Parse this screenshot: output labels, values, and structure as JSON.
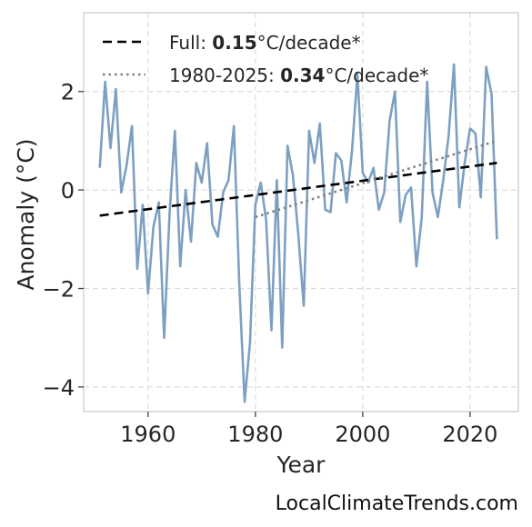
{
  "chart_data": {
    "type": "line",
    "title": "",
    "xlabel": "Year",
    "ylabel": "Anomaly (°C)",
    "xlim": [
      1948,
      2029
    ],
    "ylim": [
      -4.5,
      3.6
    ],
    "x_ticks": [
      1960,
      1980,
      2000,
      2020
    ],
    "y_ticks": [
      -4,
      -2,
      0,
      2
    ],
    "y_tick_labels": [
      "−4",
      "−2",
      "0",
      "2"
    ],
    "grid": true,
    "legend_position": "top-left",
    "colors": {
      "series": "#7da0c2",
      "trend_full": "#000000",
      "trend_recent": "#808080",
      "grid": "#dddddd",
      "frame": "#cccccc"
    },
    "series": [
      {
        "x": [
          1951,
          1952,
          1953,
          1954,
          1955,
          1956,
          1957,
          1958,
          1959,
          1960,
          1961,
          1962,
          1963,
          1964,
          1965,
          1966,
          1967,
          1968,
          1969,
          1970,
          1971,
          1972,
          1973,
          1974,
          1975,
          1976,
          1977,
          1978,
          1979,
          1980,
          1981,
          1982,
          1983,
          1984,
          1985,
          1986,
          1987,
          1988,
          1989,
          1990,
          1991,
          1992,
          1993,
          1994,
          1995,
          1996,
          1997,
          1998,
          1999,
          2000,
          2001,
          2002,
          2003,
          2004,
          2005,
          2006,
          2007,
          2008,
          2009,
          2010,
          2011,
          2012,
          2013,
          2014,
          2015,
          2016,
          2017,
          2018,
          2019,
          2020,
          2021,
          2022,
          2023,
          2024,
          2025
        ],
        "values": [
          0.45,
          2.2,
          0.85,
          2.05,
          -0.05,
          0.5,
          1.3,
          -1.6,
          -0.3,
          -2.1,
          -0.75,
          -0.25,
          -3.0,
          -0.5,
          1.2,
          -1.55,
          0.0,
          -1.05,
          0.55,
          0.15,
          0.95,
          -0.7,
          -0.95,
          -0.05,
          0.2,
          1.3,
          -1.9,
          -4.3,
          -3.1,
          -0.3,
          0.15,
          -0.6,
          -2.85,
          0.2,
          -3.2,
          0.9,
          0.3,
          -0.9,
          -2.35,
          1.2,
          0.55,
          1.35,
          -0.4,
          -0.45,
          0.75,
          0.6,
          -0.25,
          0.8,
          2.35,
          0.35,
          0.15,
          0.45,
          -0.4,
          -0.05,
          1.4,
          2.0,
          -0.65,
          -0.1,
          0.05,
          -1.55,
          -0.55,
          2.2,
          -0.05,
          -0.55,
          0.2,
          1.1,
          2.55,
          -0.35,
          0.55,
          1.25,
          1.15,
          -0.15,
          2.5,
          1.95,
          -1.0
        ]
      }
    ],
    "trend_lines": [
      {
        "label_prefix": "Full: ",
        "label_value": "0.15",
        "label_suffix": "°C/decade*",
        "x": [
          1951,
          2025
        ],
        "y": [
          -0.52,
          0.55
        ],
        "style": "dashed"
      },
      {
        "label_prefix": "1980-2025: ",
        "label_value": "0.34",
        "label_suffix": "°C/decade*",
        "x": [
          1980,
          2025
        ],
        "y": [
          -0.55,
          1.0
        ],
        "style": "dotted"
      }
    ]
  },
  "watermark": "LocalClimateTrends.com"
}
